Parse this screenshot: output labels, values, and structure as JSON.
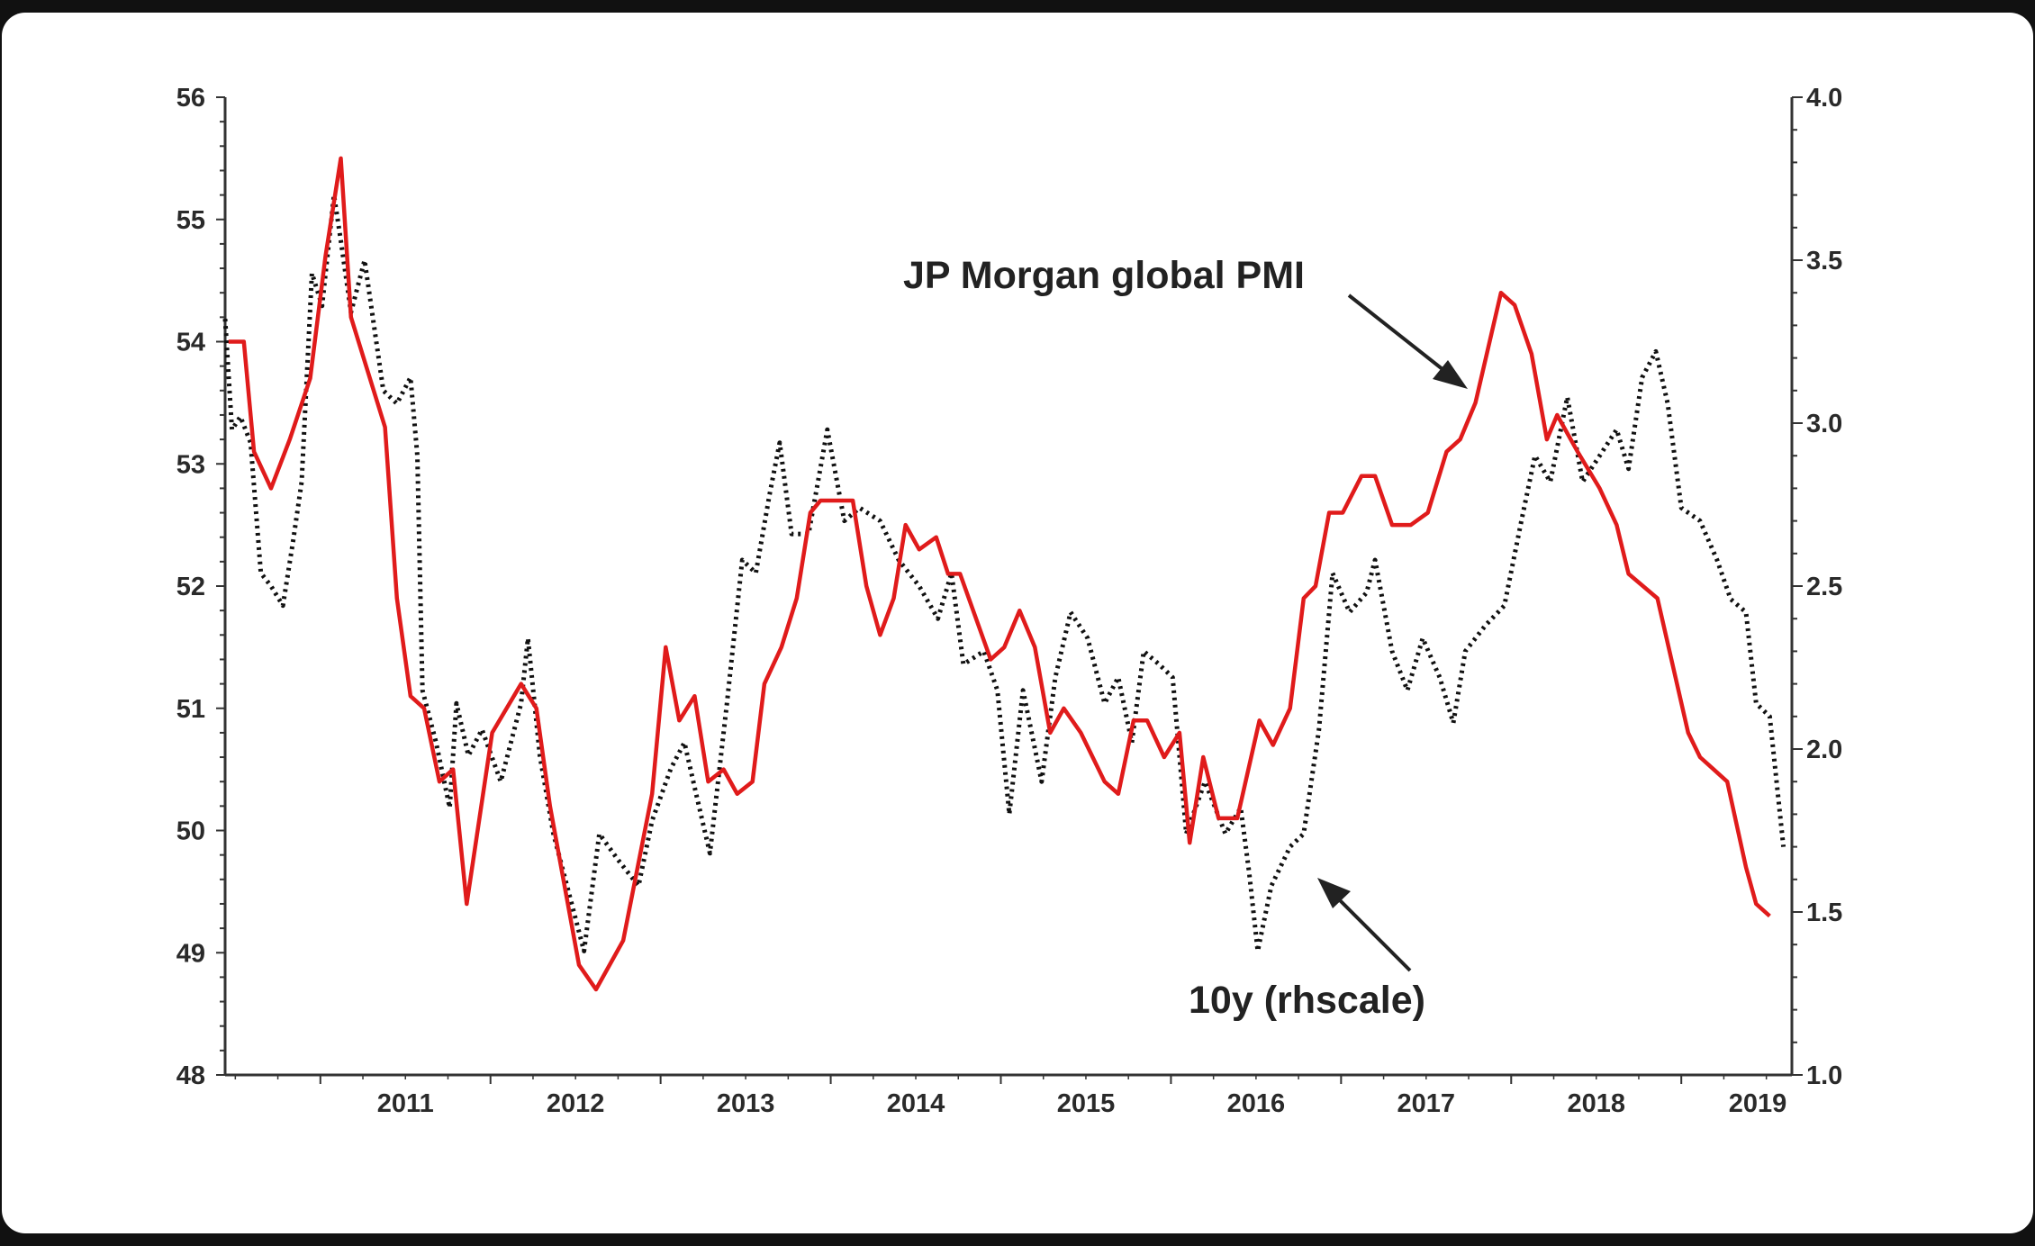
{
  "chart_data": {
    "type": "line",
    "title": "",
    "xlabel": "",
    "ylabel_left": "",
    "ylabel_right": "",
    "xlim": [
      2010.44,
      2019.65
    ],
    "ylim_left": [
      48,
      56
    ],
    "ylim_right": [
      1.0,
      4.0
    ],
    "x_ticks": [
      "2011",
      "2012",
      "2013",
      "2014",
      "2015",
      "2016",
      "2017",
      "2018",
      "2019"
    ],
    "y_ticks_left": [
      "48",
      "49",
      "50",
      "51",
      "52",
      "53",
      "54",
      "55",
      "56"
    ],
    "y_ticks_right": [
      "1.0",
      "1.5",
      "2.0",
      "2.5",
      "3.0",
      "3.5",
      "4.0"
    ],
    "grid": false,
    "annotations": [
      {
        "text": "JP Morgan global PMI",
        "target": "pmi"
      },
      {
        "text": "10y (rhscale)",
        "target": "10y"
      }
    ],
    "series": [
      {
        "name": "JP Morgan global PMI",
        "axis": "left",
        "color": "#e01b1b",
        "style": "solid",
        "x": [
          2010.46,
          2010.55,
          2010.61,
          2010.71,
          2010.82,
          2010.94,
          2011.03,
          2011.12,
          2011.18,
          2011.38,
          2011.45,
          2011.53,
          2011.61,
          2011.7,
          2011.78,
          2011.86,
          2012.01,
          2012.18,
          2012.27,
          2012.35,
          2012.52,
          2012.62,
          2012.78,
          2012.95,
          2013.03,
          2013.11,
          2013.2,
          2013.28,
          2013.37,
          2013.45,
          2013.54,
          2013.61,
          2013.71,
          2013.8,
          2013.88,
          2013.94,
          2014.13,
          2014.21,
          2014.29,
          2014.37,
          2014.44,
          2014.52,
          2014.62,
          2014.69,
          2014.76,
          2014.94,
          2015.02,
          2015.11,
          2015.2,
          2015.29,
          2015.37,
          2015.47,
          2015.61,
          2015.69,
          2015.78,
          2015.86,
          2015.96,
          2016.05,
          2016.11,
          2016.19,
          2016.28,
          2016.39,
          2016.52,
          2016.6,
          2016.7,
          2016.78,
          2016.85,
          2016.93,
          2017.01,
          2017.12,
          2017.2,
          2017.3,
          2017.41,
          2017.51,
          2017.62,
          2017.7,
          2017.79,
          2017.94,
          2018.02,
          2018.12,
          2018.21,
          2018.27,
          2018.39,
          2018.52,
          2018.62,
          2018.69,
          2018.86,
          2019.04,
          2019.11,
          2019.27,
          2019.38,
          2019.44,
          2019.52
        ],
        "values": [
          54.0,
          54.0,
          53.1,
          52.8,
          53.2,
          53.7,
          54.7,
          55.5,
          54.2,
          53.3,
          51.9,
          51.1,
          51.0,
          50.4,
          50.5,
          49.4,
          50.8,
          51.2,
          51.0,
          50.2,
          48.9,
          48.7,
          49.1,
          50.3,
          51.5,
          50.9,
          51.1,
          50.4,
          50.5,
          50.3,
          50.4,
          51.2,
          51.5,
          51.9,
          52.6,
          52.7,
          52.7,
          52.0,
          51.6,
          51.9,
          52.5,
          52.3,
          52.4,
          52.1,
          52.1,
          51.4,
          51.5,
          51.8,
          51.5,
          50.8,
          51.0,
          50.8,
          50.4,
          50.3,
          50.9,
          50.9,
          50.6,
          50.8,
          49.9,
          50.6,
          50.1,
          50.1,
          50.9,
          50.7,
          51.0,
          51.9,
          52.0,
          52.6,
          52.6,
          52.9,
          52.9,
          52.5,
          52.5,
          52.6,
          53.1,
          53.2,
          53.5,
          54.4,
          54.3,
          53.9,
          53.2,
          53.4,
          53.1,
          52.8,
          52.5,
          52.1,
          51.9,
          50.8,
          50.6,
          50.4,
          49.7,
          49.4,
          49.3
        ]
      },
      {
        "name": "10y (rhscale)",
        "axis": "right",
        "color": "#111111",
        "style": "dotted",
        "x": [
          2010.44,
          2010.48,
          2010.53,
          2010.59,
          2010.65,
          2010.71,
          2010.78,
          2010.84,
          2010.89,
          2010.95,
          2011.01,
          2011.08,
          2011.12,
          2011.18,
          2011.26,
          2011.37,
          2011.45,
          2011.53,
          2011.57,
          2011.6,
          2011.68,
          2011.76,
          2011.8,
          2011.87,
          2011.95,
          2012.06,
          2012.18,
          2012.22,
          2012.29,
          2012.37,
          2012.45,
          2012.55,
          2012.64,
          2012.75,
          2012.87,
          2012.95,
          2013.06,
          2013.14,
          2013.21,
          2013.29,
          2013.39,
          2013.48,
          2013.56,
          2013.64,
          2013.7,
          2013.77,
          2013.87,
          2013.98,
          2014.08,
          2014.17,
          2014.29,
          2014.4,
          2014.52,
          2014.63,
          2014.71,
          2014.78,
          2014.9,
          2014.98,
          2015.05,
          2015.13,
          2015.24,
          2015.32,
          2015.41,
          2015.51,
          2015.61,
          2015.69,
          2015.77,
          2015.84,
          2015.93,
          2016.01,
          2016.09,
          2016.2,
          2016.32,
          2016.41,
          2016.46,
          2016.51,
          2016.59,
          2016.7,
          2016.78,
          2016.87,
          2016.95,
          2017.05,
          2017.15,
          2017.2,
          2017.3,
          2017.39,
          2017.48,
          2017.58,
          2017.66,
          2017.73,
          2017.85,
          2017.96,
          2018.06,
          2018.14,
          2018.23,
          2018.33,
          2018.42,
          2018.52,
          2018.62,
          2018.69,
          2018.77,
          2018.85,
          2018.92,
          2019.0,
          2019.11,
          2019.21,
          2019.29,
          2019.38,
          2019.44,
          2019.52,
          2019.6
        ],
        "values": [
          3.32,
          2.98,
          3.02,
          2.94,
          2.54,
          2.5,
          2.44,
          2.64,
          2.82,
          3.46,
          3.36,
          3.7,
          3.56,
          3.34,
          3.5,
          3.1,
          3.06,
          3.14,
          2.9,
          2.18,
          2.02,
          1.82,
          2.14,
          1.98,
          2.06,
          1.9,
          2.14,
          2.34,
          1.98,
          1.74,
          1.58,
          1.38,
          1.74,
          1.66,
          1.58,
          1.78,
          1.94,
          2.02,
          1.86,
          1.68,
          2.14,
          2.58,
          2.54,
          2.78,
          2.94,
          2.66,
          2.66,
          2.98,
          2.7,
          2.74,
          2.7,
          2.58,
          2.5,
          2.4,
          2.54,
          2.26,
          2.3,
          2.18,
          1.8,
          2.18,
          1.9,
          2.22,
          2.42,
          2.34,
          2.14,
          2.22,
          2.02,
          2.3,
          2.26,
          2.22,
          1.74,
          1.9,
          1.74,
          1.82,
          1.62,
          1.38,
          1.58,
          1.7,
          1.74,
          2.06,
          2.54,
          2.42,
          2.48,
          2.58,
          2.3,
          2.18,
          2.34,
          2.22,
          2.08,
          2.3,
          2.38,
          2.44,
          2.7,
          2.9,
          2.82,
          3.08,
          2.82,
          2.9,
          2.98,
          2.86,
          3.14,
          3.22,
          3.06,
          2.74,
          2.7,
          2.58,
          2.46,
          2.42,
          2.14,
          2.1,
          1.7
        ]
      }
    ]
  }
}
